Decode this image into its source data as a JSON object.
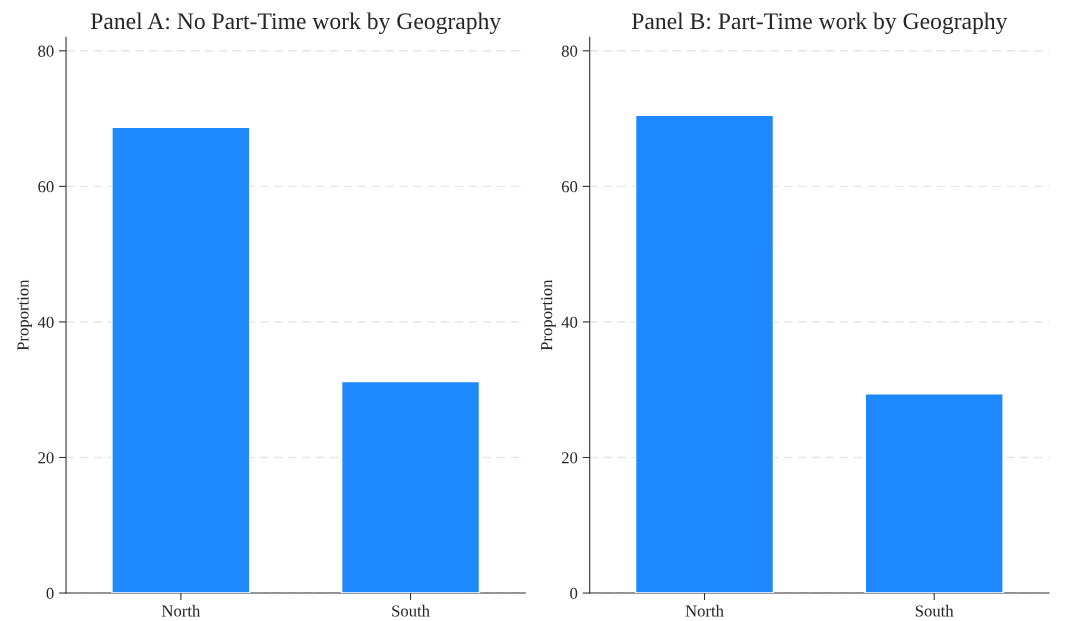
{
  "chart_data": [
    {
      "type": "bar",
      "title": "Panel A: No Part-Time work by Geography",
      "ylabel": "Proportion",
      "categories": [
        "North",
        "South"
      ],
      "values": [
        68.7,
        31.2
      ],
      "color": "#1e88ff",
      "ylim": [
        0,
        82
      ],
      "yticks": [
        0,
        20,
        40,
        60,
        80
      ],
      "grid": "y"
    },
    {
      "type": "bar",
      "title": "Panel B: Part-Time work by Geography",
      "ylabel": "Proportion",
      "categories": [
        "North",
        "South"
      ],
      "values": [
        70.5,
        29.4
      ],
      "color": "#1e88ff",
      "ylim": [
        0,
        82
      ],
      "yticks": [
        0,
        20,
        40,
        60,
        80
      ],
      "grid": "y"
    }
  ]
}
